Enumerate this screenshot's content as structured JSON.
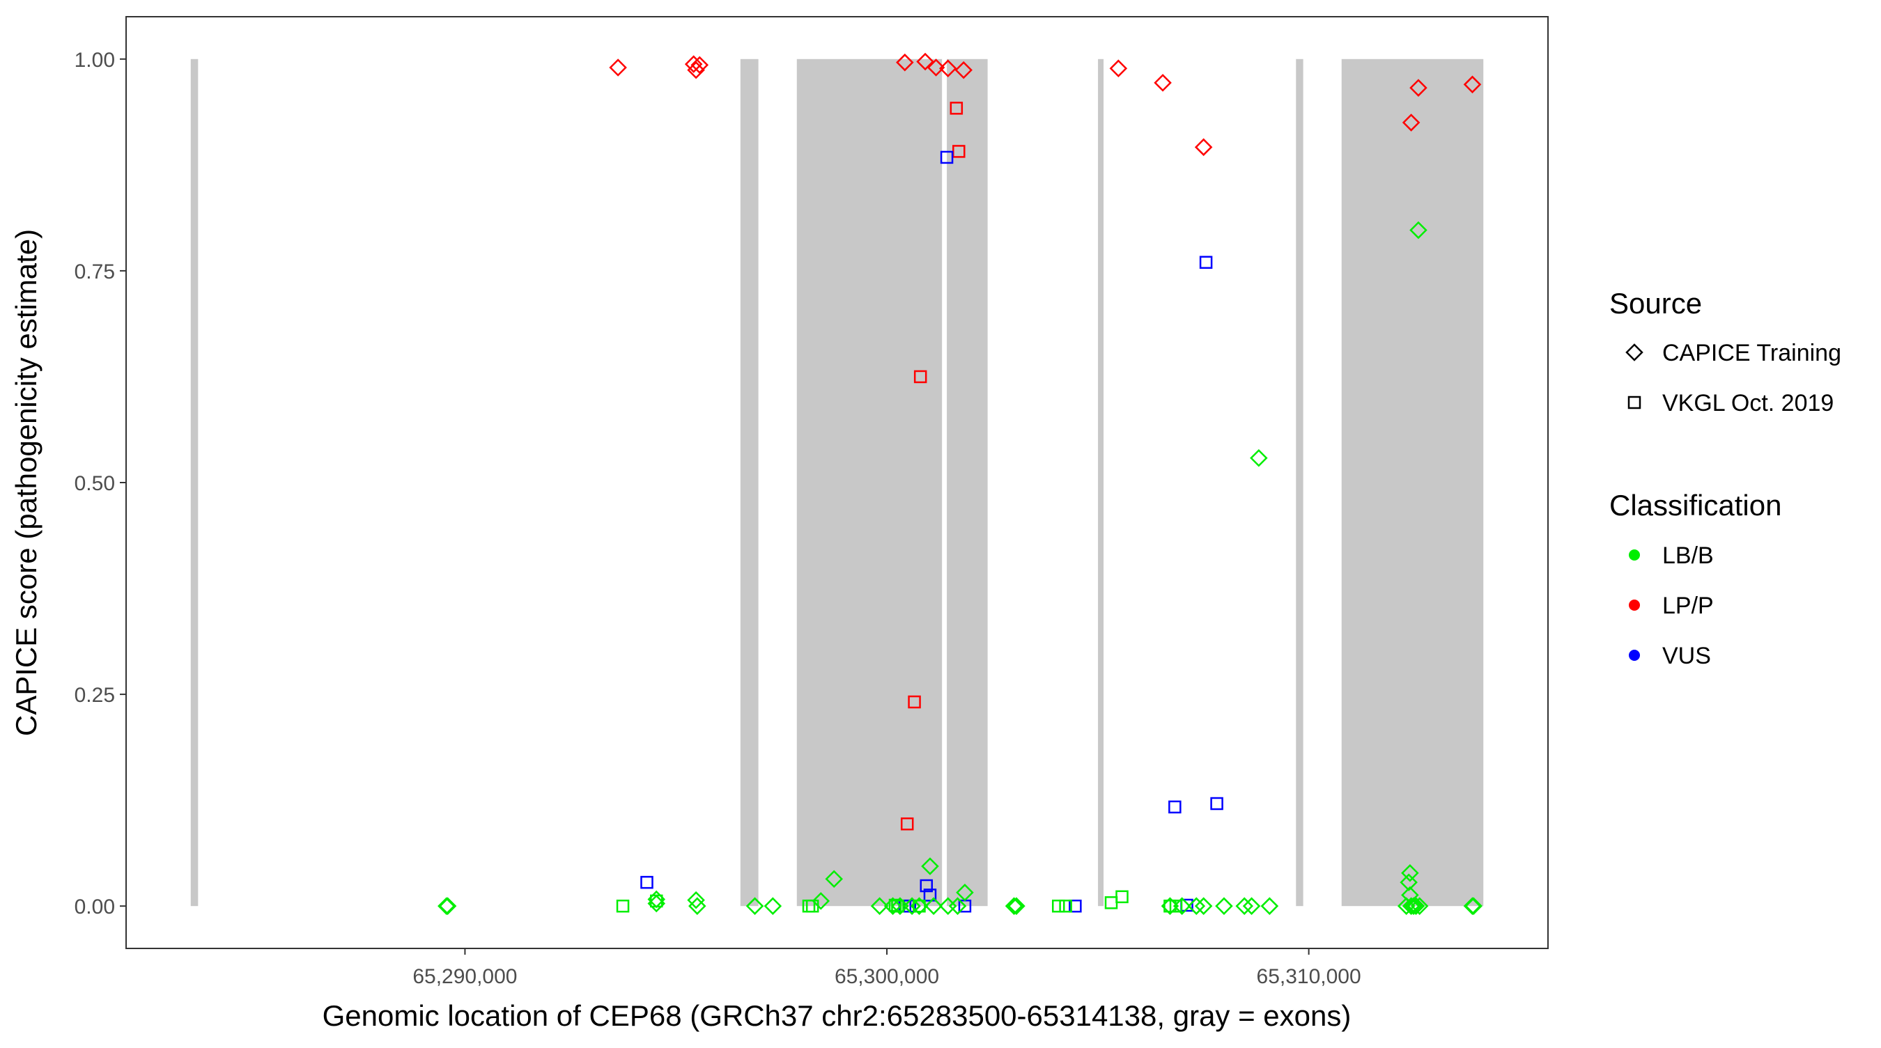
{
  "chart_data": {
    "type": "scatter",
    "title": "",
    "xlabel": "Genomic location of CEP68 (GRCh37 chr2:65283500-65314138, gray = exons)",
    "ylabel": "CAPICE score (pathogenicity estimate)",
    "xlim": [
      65281968,
      65315670
    ],
    "ylim": [
      -0.05,
      1.05
    ],
    "x_ticks": [
      65290000,
      65300000,
      65310000
    ],
    "x_tick_labels": [
      "65,290,000",
      "65,300,000",
      "65,310,000"
    ],
    "y_ticks": [
      0,
      0.25,
      0.5,
      0.75,
      1.0
    ],
    "y_tick_labels": [
      "0.00",
      "0.25",
      "0.50",
      "0.75",
      "1.00"
    ],
    "grid": false,
    "legend_position": "right",
    "exons": [
      [
        65283500,
        65283674
      ],
      [
        65296529,
        65296955
      ],
      [
        65297866,
        65301307
      ],
      [
        65301421,
        65302388
      ],
      [
        65305004,
        65305090
      ],
      [
        65309697,
        65309868
      ],
      [
        65310778,
        65314138
      ]
    ],
    "exon_color": "#c8c8c8",
    "legend": {
      "source_title": "Source",
      "sources": [
        {
          "key": "T",
          "label": "CAPICE Training",
          "shape": "diamond"
        },
        {
          "key": "V",
          "label": "VKGL Oct. 2019",
          "shape": "square"
        }
      ],
      "class_title": "Classification",
      "classes": [
        {
          "key": "LB/B",
          "label": "LB/B",
          "color": "#00ee00"
        },
        {
          "key": "LP/P",
          "label": "LP/P",
          "color": "#ff0000"
        },
        {
          "key": "VUS",
          "label": "VUS",
          "color": "#0000ff"
        }
      ]
    },
    "points_columns": [
      "position",
      "score",
      "source",
      "classification"
    ],
    "points": [
      [
        65293628,
        0.99,
        "T",
        "LP/P"
      ],
      [
        65295420,
        0.994,
        "T",
        "LP/P"
      ],
      [
        65295477,
        0.987,
        "T",
        "LP/P"
      ],
      [
        65295562,
        0.993,
        "T",
        "LP/P"
      ],
      [
        65300426,
        0.996,
        "T",
        "LP/P"
      ],
      [
        65300909,
        0.997,
        "T",
        "LP/P"
      ],
      [
        65301165,
        0.99,
        "T",
        "LP/P"
      ],
      [
        65301449,
        0.989,
        "T",
        "LP/P"
      ],
      [
        65301819,
        0.987,
        "T",
        "LP/P"
      ],
      [
        65305488,
        0.989,
        "T",
        "LP/P"
      ],
      [
        65306540,
        0.972,
        "T",
        "LP/P"
      ],
      [
        65307507,
        0.896,
        "T",
        "LP/P"
      ],
      [
        65312427,
        0.925,
        "T",
        "LP/P"
      ],
      [
        65312598,
        0.966,
        "T",
        "LP/P"
      ],
      [
        65313878,
        0.97,
        "T",
        "LP/P"
      ],
      [
        65301648,
        0.942,
        "V",
        "LP/P"
      ],
      [
        65301705,
        0.891,
        "V",
        "LP/P"
      ],
      [
        65300795,
        0.625,
        "V",
        "LP/P"
      ],
      [
        65300653,
        0.241,
        "V",
        "LP/P"
      ],
      [
        65300482,
        0.097,
        "V",
        "LP/P"
      ],
      [
        65301421,
        0.884,
        "V",
        "VUS"
      ],
      [
        65307564,
        0.76,
        "V",
        "VUS"
      ],
      [
        65294311,
        0.028,
        "V",
        "VUS"
      ],
      [
        65300937,
        0.024,
        "V",
        "VUS"
      ],
      [
        65301023,
        0.013,
        "V",
        "VUS"
      ],
      [
        65300426,
        0.0,
        "V",
        "VUS"
      ],
      [
        65300539,
        0.0,
        "V",
        "VUS"
      ],
      [
        65301848,
        0.0,
        "V",
        "VUS"
      ],
      [
        65304464,
        0.0,
        "V",
        "VUS"
      ],
      [
        65306825,
        0.117,
        "V",
        "VUS"
      ],
      [
        65307820,
        0.121,
        "V",
        "VUS"
      ],
      [
        65307109,
        0.001,
        "V",
        "VUS"
      ],
      [
        65289561,
        0.0,
        "T",
        "LB/B"
      ],
      [
        65289590,
        0.0,
        "T",
        "LB/B"
      ],
      [
        65294538,
        0.008,
        "T",
        "LB/B"
      ],
      [
        65294538,
        0.003,
        "T",
        "LB/B"
      ],
      [
        65295477,
        0.007,
        "T",
        "LB/B"
      ],
      [
        65295505,
        0.0,
        "T",
        "LB/B"
      ],
      [
        65296871,
        0.0,
        "T",
        "LB/B"
      ],
      [
        65297297,
        0.0,
        "T",
        "LB/B"
      ],
      [
        65298435,
        0.006,
        "T",
        "LB/B"
      ],
      [
        65298748,
        0.032,
        "T",
        "LB/B"
      ],
      [
        65299828,
        0.0,
        "T",
        "LB/B"
      ],
      [
        65301023,
        0.047,
        "T",
        "LB/B"
      ],
      [
        65301848,
        0.016,
        "T",
        "LB/B"
      ],
      [
        65300141,
        0.0,
        "T",
        "LB/B"
      ],
      [
        65300767,
        0.0,
        "T",
        "LB/B"
      ],
      [
        65301108,
        0.0,
        "T",
        "LB/B"
      ],
      [
        65301449,
        0.0,
        "T",
        "LB/B"
      ],
      [
        65301677,
        0.0,
        "T",
        "LB/B"
      ],
      [
        65303014,
        0.0,
        "T",
        "LB/B"
      ],
      [
        65303070,
        0.0,
        "T",
        "LB/B"
      ],
      [
        65308815,
        0.529,
        "T",
        "LB/B"
      ],
      [
        65312598,
        0.798,
        "T",
        "LB/B"
      ],
      [
        65312399,
        0.039,
        "T",
        "LB/B"
      ],
      [
        65312370,
        0.028,
        "T",
        "LB/B"
      ],
      [
        65312399,
        0.013,
        "T",
        "LB/B"
      ],
      [
        65312484,
        0.0,
        "T",
        "LB/B"
      ],
      [
        65312626,
        0.0,
        "T",
        "LB/B"
      ],
      [
        65312427,
        0.0,
        "T",
        "LB/B"
      ],
      [
        65313878,
        0.0,
        "T",
        "LB/B"
      ],
      [
        65313906,
        0.0,
        "T",
        "LB/B"
      ],
      [
        65306711,
        0.0,
        "T",
        "LB/B"
      ],
      [
        65306995,
        0.0,
        "T",
        "LB/B"
      ],
      [
        65307336,
        0.0,
        "T",
        "LB/B"
      ],
      [
        65307507,
        0.0,
        "T",
        "LB/B"
      ],
      [
        65307991,
        0.0,
        "T",
        "LB/B"
      ],
      [
        65308474,
        0.0,
        "T",
        "LB/B"
      ],
      [
        65308645,
        0.0,
        "T",
        "LB/B"
      ],
      [
        65309071,
        0.0,
        "T",
        "LB/B"
      ],
      [
        65312313,
        0.0,
        "T",
        "LB/B"
      ],
      [
        65312541,
        0.0,
        "T",
        "LB/B"
      ],
      [
        65300596,
        0.0,
        "T",
        "LB/B"
      ],
      [
        65300312,
        0.0,
        "T",
        "LB/B"
      ],
      [
        65293742,
        0.0,
        "V",
        "LB/B"
      ],
      [
        65294538,
        0.006,
        "V",
        "LB/B"
      ],
      [
        65298150,
        0.0,
        "V",
        "LB/B"
      ],
      [
        65298236,
        0.0,
        "V",
        "LB/B"
      ],
      [
        65300198,
        0.001,
        "V",
        "LB/B"
      ],
      [
        65300255,
        0.0,
        "V",
        "LB/B"
      ],
      [
        65300767,
        0.0,
        "V",
        "LB/B"
      ],
      [
        65304066,
        0.0,
        "V",
        "LB/B"
      ],
      [
        65304237,
        0.0,
        "V",
        "LB/B"
      ],
      [
        65305317,
        0.004,
        "V",
        "LB/B"
      ],
      [
        65305573,
        0.011,
        "V",
        "LB/B"
      ],
      [
        65306711,
        0.0,
        "V",
        "LB/B"
      ],
      [
        65306853,
        0.0,
        "V",
        "LB/B"
      ]
    ]
  }
}
